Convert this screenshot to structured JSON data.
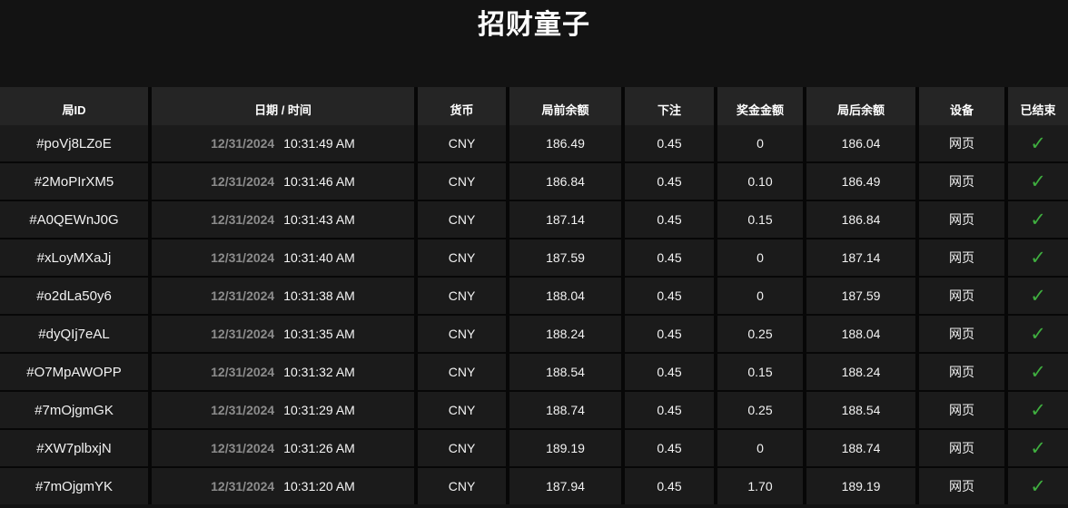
{
  "page": {
    "title": "招财童子"
  },
  "table": {
    "headers": [
      "局ID",
      "日期 / 时间",
      "货币",
      "局前余额",
      "下注",
      "奖金金额",
      "局后余额",
      "设备",
      "已结束"
    ],
    "check_icon": "✓",
    "check_color": "#3fae3f",
    "rows": [
      {
        "id": "#poVj8LZoE",
        "date": "12/31/2024",
        "time": "10:31:49 AM",
        "currency": "CNY",
        "balance_before": "186.49",
        "bet": "0.45",
        "prize": "0",
        "balance_after": "186.04",
        "device": "网页",
        "ended": true
      },
      {
        "id": "#2MoPIrXM5",
        "date": "12/31/2024",
        "time": "10:31:46 AM",
        "currency": "CNY",
        "balance_before": "186.84",
        "bet": "0.45",
        "prize": "0.10",
        "balance_after": "186.49",
        "device": "网页",
        "ended": true
      },
      {
        "id": "#A0QEWnJ0G",
        "date": "12/31/2024",
        "time": "10:31:43 AM",
        "currency": "CNY",
        "balance_before": "187.14",
        "bet": "0.45",
        "prize": "0.15",
        "balance_after": "186.84",
        "device": "网页",
        "ended": true
      },
      {
        "id": "#xLoyMXaJj",
        "date": "12/31/2024",
        "time": "10:31:40 AM",
        "currency": "CNY",
        "balance_before": "187.59",
        "bet": "0.45",
        "prize": "0",
        "balance_after": "187.14",
        "device": "网页",
        "ended": true
      },
      {
        "id": "#o2dLa50y6",
        "date": "12/31/2024",
        "time": "10:31:38 AM",
        "currency": "CNY",
        "balance_before": "188.04",
        "bet": "0.45",
        "prize": "0",
        "balance_after": "187.59",
        "device": "网页",
        "ended": true
      },
      {
        "id": "#dyQIj7eAL",
        "date": "12/31/2024",
        "time": "10:31:35 AM",
        "currency": "CNY",
        "balance_before": "188.24",
        "bet": "0.45",
        "prize": "0.25",
        "balance_after": "188.04",
        "device": "网页",
        "ended": true
      },
      {
        "id": "#O7MpAWOPP",
        "date": "12/31/2024",
        "time": "10:31:32 AM",
        "currency": "CNY",
        "balance_before": "188.54",
        "bet": "0.45",
        "prize": "0.15",
        "balance_after": "188.24",
        "device": "网页",
        "ended": true
      },
      {
        "id": "#7mOjgmGK",
        "date": "12/31/2024",
        "time": "10:31:29 AM",
        "currency": "CNY",
        "balance_before": "188.74",
        "bet": "0.45",
        "prize": "0.25",
        "balance_after": "188.54",
        "device": "网页",
        "ended": true
      },
      {
        "id": "#XW7plbxjN",
        "date": "12/31/2024",
        "time": "10:31:26 AM",
        "currency": "CNY",
        "balance_before": "189.19",
        "bet": "0.45",
        "prize": "0",
        "balance_after": "188.74",
        "device": "网页",
        "ended": true
      },
      {
        "id": "#7mOjgmYK",
        "date": "12/31/2024",
        "time": "10:31:20 AM",
        "currency": "CNY",
        "balance_before": "187.94",
        "bet": "0.45",
        "prize": "1.70",
        "balance_after": "189.19",
        "device": "网页",
        "ended": true
      }
    ]
  }
}
